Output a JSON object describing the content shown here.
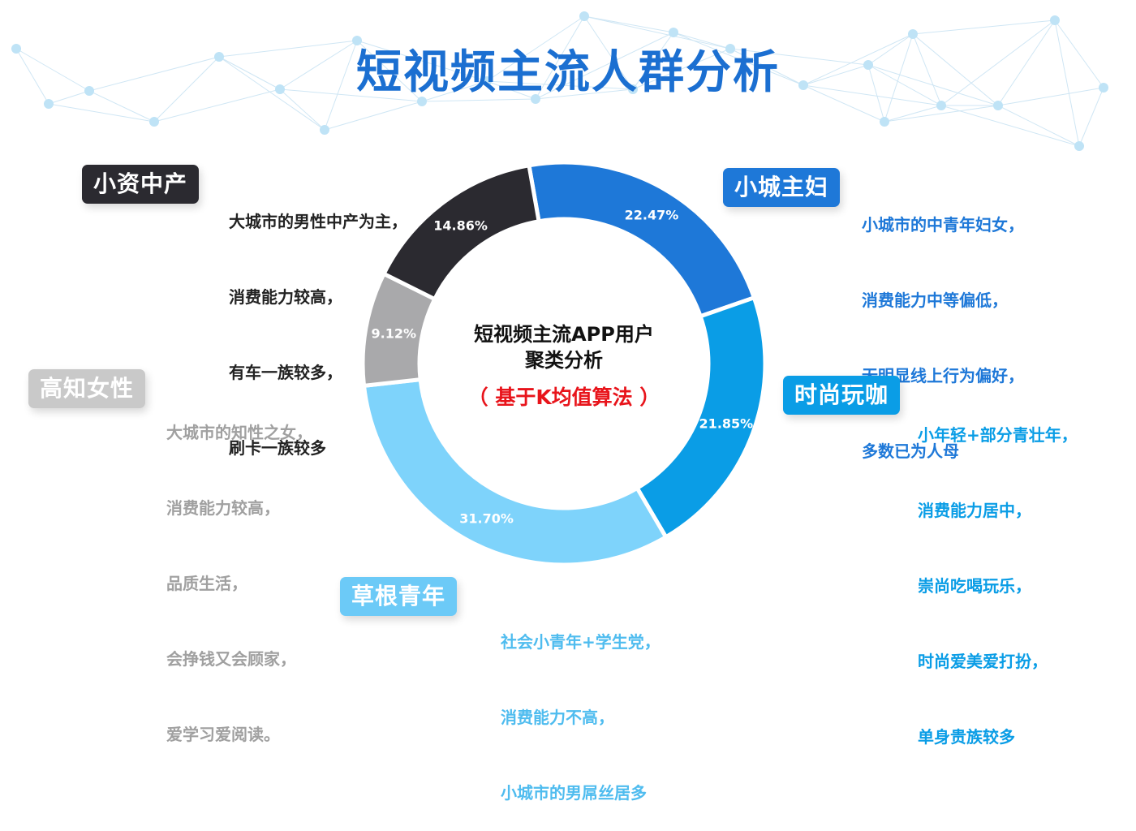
{
  "title": "短视频主流人群分析",
  "center": {
    "line1": "短视频主流APP用户",
    "line2": "聚类分析",
    "line3": "（ 基于K均值算法 ）"
  },
  "chart_data": {
    "type": "pie",
    "donut": true,
    "categories": [
      "小城主妇",
      "时尚玩咖",
      "草根青年",
      "高知女性",
      "小资中产"
    ],
    "values": [
      22.47,
      21.85,
      31.7,
      9.12,
      14.86
    ],
    "labels": [
      "22.47%",
      "21.85%",
      "31.70%",
      "9.12%",
      "14.86%"
    ],
    "colors": [
      "#1e78d8",
      "#0a9de6",
      "#7ed3fb",
      "#a9a9ab",
      "#2b2a30"
    ]
  },
  "groups": [
    {
      "name": "小城主妇",
      "desc": [
        "小城市的中青年妇女，",
        "消费能力中等偏低，",
        "无明显线上行为偏好，",
        "多数已为人母"
      ],
      "color": "#1e78d8",
      "text_color": "#1e78d8"
    },
    {
      "name": "时尚玩咖",
      "desc": [
        "小年轻+部分青壮年，",
        "消费能力居中，",
        "崇尚吃喝玩乐，",
        "时尚爱美爱打扮，",
        "单身贵族较多"
      ],
      "color": "#0a9de6",
      "text_color": "#0a9de6"
    },
    {
      "name": "草根青年",
      "desc": [
        "社会小青年+学生党，",
        "消费能力不高，",
        "小城市的男屌丝居多"
      ],
      "color": "#6ccaf7",
      "text_color": "#4fbcef"
    },
    {
      "name": "高知女性",
      "desc": [
        "大城市的知性之女，",
        "消费能力较高，",
        "品质生活，",
        "会挣钱又会顾家，",
        "爱学习爱阅读。"
      ],
      "color": "#c9c9c9",
      "text_color": "#a0a0a0"
    },
    {
      "name": "小资中产",
      "desc": [
        "大城市的男性中产为主，",
        "消费能力较高，",
        "有车一族较多，",
        "刷卡一族较多"
      ],
      "color": "#2b2a30",
      "text_color": "#222222"
    }
  ]
}
